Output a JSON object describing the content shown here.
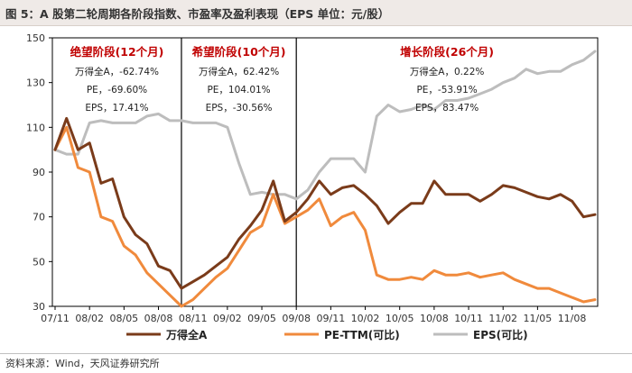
{
  "page": {
    "title": "图 5：A 股第二轮周期各阶段指数、市盈率及盈利表现（EPS 单位：元/股）",
    "source": "资料来源：Wind，天风证券研究所"
  },
  "chart_data": {
    "type": "line",
    "title": "图 5：A 股第二轮周期各阶段指数、市盈率及盈利表现（EPS 单位：元/股）",
    "x_tick_labels": [
      "07/11",
      "08/02",
      "08/05",
      "08/08",
      "08/11",
      "09/02",
      "09/05",
      "09/08",
      "09/11",
      "10/02",
      "10/05",
      "10/08",
      "10/11",
      "11/02",
      "11/05",
      "11/08"
    ],
    "x": [
      "07/11",
      "07/12",
      "08/01",
      "08/02",
      "08/03",
      "08/04",
      "08/05",
      "08/06",
      "08/07",
      "08/08",
      "08/09",
      "08/10",
      "08/11",
      "08/12",
      "09/01",
      "09/02",
      "09/03",
      "09/04",
      "09/05",
      "09/06",
      "09/07",
      "09/08",
      "09/09",
      "09/10",
      "09/11",
      "09/12",
      "10/01",
      "10/02",
      "10/03",
      "10/04",
      "10/05",
      "10/06",
      "10/07",
      "10/08",
      "10/09",
      "10/10",
      "10/11",
      "10/12",
      "11/01",
      "11/02",
      "11/03",
      "11/04",
      "11/05",
      "11/06",
      "11/07",
      "11/08",
      "11/09",
      "11/10"
    ],
    "ylim": [
      30,
      150
    ],
    "yticks": [
      30,
      50,
      70,
      90,
      110,
      130,
      150
    ],
    "series": [
      {
        "name": "万得全A",
        "color": "#7a3b1a",
        "values": [
          100,
          114,
          100,
          103,
          85,
          87,
          70,
          62,
          58,
          48,
          46,
          38,
          41,
          44,
          48,
          52,
          60,
          66,
          73,
          86,
          68,
          72,
          78,
          86,
          80,
          83,
          84,
          80,
          75,
          67,
          72,
          76,
          76,
          86,
          80,
          80,
          80,
          77,
          80,
          84,
          83,
          81,
          79,
          78,
          80,
          77,
          70,
          71
        ]
      },
      {
        "name": "PE-TTM(可比)",
        "color": "#f08a3c",
        "values": [
          100,
          110,
          92,
          90,
          70,
          68,
          57,
          53,
          45,
          40,
          35,
          30,
          33,
          38,
          43,
          47,
          55,
          63,
          66,
          80,
          67,
          70,
          73,
          78,
          66,
          70,
          72,
          64,
          44,
          42,
          42,
          43,
          42,
          46,
          44,
          44,
          45,
          43,
          44,
          45,
          42,
          40,
          38,
          38,
          36,
          34,
          32,
          33
        ]
      },
      {
        "name": "EPS(可比)",
        "color": "#bdbdbd",
        "values": [
          100,
          98,
          98,
          112,
          113,
          112,
          112,
          112,
          115,
          116,
          113,
          113,
          112,
          112,
          112,
          110,
          94,
          80,
          81,
          80,
          80,
          78,
          82,
          90,
          96,
          96,
          96,
          90,
          115,
          120,
          117,
          118,
          120,
          118,
          122,
          122,
          123,
          125,
          127,
          130,
          132,
          136,
          134,
          135,
          135,
          138,
          140,
          144
        ]
      }
    ],
    "phases": [
      {
        "title": "绝望阶段(12个月)",
        "stats": [
          "万得全A，-62.74%",
          "PE，-69.60%",
          "EPS，17.41%"
        ]
      },
      {
        "title": "希望阶段(10个月)",
        "stats": [
          "万得全A，62.42%",
          "PE，104.01%",
          "EPS，-30.56%"
        ]
      },
      {
        "title": "增长阶段(26个月)",
        "stats": [
          "万得全A，0.22%",
          "PE，-53.91%",
          "EPS，83.47%"
        ]
      }
    ],
    "phase_boundaries": [
      "08/10",
      "09/08"
    ],
    "legend": [
      "万得全A",
      "PE-TTM(可比)",
      "EPS(可比)"
    ],
    "legend_position": "bottom",
    "grid": false
  }
}
